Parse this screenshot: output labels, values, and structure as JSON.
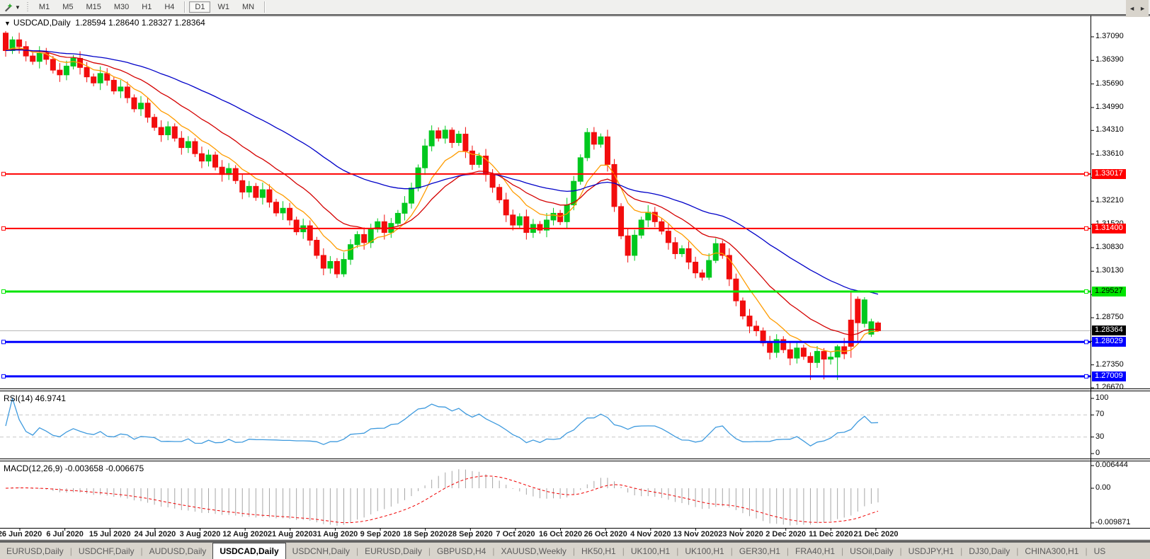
{
  "toolbar": {
    "cursor_tool_icon": "chart-cursor-icon",
    "dropdown_caret": "▼",
    "timeframes": [
      "M1",
      "M5",
      "M15",
      "M30",
      "H1",
      "H4",
      "D1",
      "W1",
      "MN"
    ],
    "active_timeframe": "D1",
    "group_break_after": "H4"
  },
  "header": {
    "collapse_icon": "▼",
    "title": "USDCAD,Daily",
    "ohlc_display": "1.28594 1.28640 1.28327 1.28364"
  },
  "colors": {
    "bull": "#00c81e",
    "bear": "#f20d0d",
    "ma_fast": "#ff9c00",
    "ma_mid": "#d40000",
    "ma_slow": "#0000c8",
    "level_red": "#ff0000",
    "level_green": "#00e400",
    "level_blue": "#0000ff",
    "current_line": "#b4b4b4",
    "current_label_bg": "#000000",
    "rsi_line": "#3e9ade",
    "rsi_grid": "#c8c8c8",
    "macd_hist": "#a6a6a6",
    "macd_signal": "#f00000"
  },
  "chart_data": {
    "type": "candlestick",
    "symbol": "USDCAD",
    "period": "Daily",
    "current_bar": {
      "open": 1.28594,
      "high": 1.2864,
      "low": 1.28327,
      "close": 1.28364
    },
    "y_axis": {
      "top": 1.3709,
      "bottom": 1.2667,
      "ticks": [
        "1.37090",
        "1.36390",
        "1.35690",
        "1.34990",
        "1.34310",
        "1.33610",
        "1.32910",
        "1.32210",
        "1.31520",
        "1.30830",
        "1.30130",
        "1.29430",
        "1.28750",
        "1.28050",
        "1.27350",
        "1.26670"
      ]
    },
    "x_labels": [
      "26 Jun 2020",
      "6 Jul 2020",
      "15 Jul 2020",
      "24 Jul 2020",
      "3 Aug 2020",
      "12 Aug 2020",
      "21 Aug 2020",
      "31 Aug 2020",
      "9 Sep 2020",
      "18 Sep 2020",
      "28 Sep 2020",
      "7 Oct 2020",
      "16 Oct 2020",
      "26 Oct 2020",
      "4 Nov 2020",
      "13 Nov 2020",
      "23 Nov 2020",
      "2 Dec 2020",
      "11 Dec 2020",
      "21 Dec 2020"
    ],
    "levels": [
      {
        "price": 1.33017,
        "label": "1.33017",
        "color": "#ff0000",
        "text": "#ffffff",
        "width": 2,
        "role": "resistance"
      },
      {
        "price": 1.314,
        "label": "1.31400",
        "color": "#ff0000",
        "text": "#ffffff",
        "width": 2,
        "role": "resistance"
      },
      {
        "price": 1.29527,
        "label": "1.29527",
        "color": "#00e400",
        "text": "#000000",
        "width": 3,
        "role": "pivot"
      },
      {
        "price": 1.28029,
        "label": "1.28029",
        "color": "#0000ff",
        "text": "#ffffff",
        "width": 3,
        "role": "support"
      },
      {
        "price": 1.27009,
        "label": "1.27009",
        "color": "#0000ff",
        "text": "#ffffff",
        "width": 3,
        "role": "support"
      }
    ],
    "current_price": {
      "value": 1.28364,
      "label": "1.28364"
    },
    "moving_averages": [
      {
        "name": "fast",
        "period": 8,
        "color": "#ff9c00"
      },
      {
        "name": "mid",
        "period": 18,
        "color": "#d40000"
      },
      {
        "name": "slow",
        "period": 45,
        "color": "#0000c8"
      }
    ],
    "indicators": [
      {
        "name": "RSI",
        "label": "RSI(14) 46.9741",
        "period": 14,
        "value": 46.9741,
        "axis_ticks": [
          "100",
          "70",
          "30",
          "0"
        ],
        "grid_levels": [
          70,
          30
        ]
      },
      {
        "name": "MACD",
        "label": "MACD(12,26,9) -0.003658 -0.006675",
        "params": [
          12,
          26,
          9
        ],
        "main_value": -0.003658,
        "signal_value": -0.006675,
        "axis_ticks": [
          "0.006444",
          "0.00",
          "-0.009871"
        ],
        "axis_top": 0.006444,
        "axis_bottom": -0.009871
      }
    ],
    "candles": [
      [
        1.372,
        1.3726,
        1.365,
        1.3668
      ],
      [
        1.3668,
        1.371,
        1.3658,
        1.37
      ],
      [
        1.37,
        1.3721,
        1.3659,
        1.368
      ],
      [
        1.368,
        1.3696,
        1.3636,
        1.3652
      ],
      [
        1.3652,
        1.3662,
        1.3626,
        1.3636
      ],
      [
        1.3636,
        1.3681,
        1.3615,
        1.366
      ],
      [
        1.366,
        1.3676,
        1.3626,
        1.3642
      ],
      [
        1.3642,
        1.3652,
        1.36,
        1.361
      ],
      [
        1.361,
        1.3631,
        1.3575,
        1.3596
      ],
      [
        1.3596,
        1.3638,
        1.358,
        1.3622
      ],
      [
        1.3622,
        1.3655,
        1.3612,
        1.3645
      ],
      [
        1.3645,
        1.3666,
        1.3597,
        1.3618
      ],
      [
        1.3618,
        1.3634,
        1.3574,
        1.359
      ],
      [
        1.359,
        1.36,
        1.3562,
        1.3572
      ],
      [
        1.3572,
        1.3621,
        1.3551,
        1.36
      ],
      [
        1.36,
        1.3616,
        1.3564,
        1.358
      ],
      [
        1.358,
        1.359,
        1.3538,
        1.3548
      ],
      [
        1.3548,
        1.3581,
        1.3527,
        1.356
      ],
      [
        1.356,
        1.3576,
        1.3512,
        1.3528
      ],
      [
        1.3528,
        1.3538,
        1.3485,
        1.3495
      ],
      [
        1.3495,
        1.3533,
        1.3474,
        1.3512
      ],
      [
        1.3512,
        1.3528,
        1.3454,
        1.347
      ],
      [
        1.347,
        1.348,
        1.343,
        1.344
      ],
      [
        1.344,
        1.3461,
        1.3397,
        1.3418
      ],
      [
        1.3418,
        1.3458,
        1.3402,
        1.3442
      ],
      [
        1.3442,
        1.3452,
        1.3398,
        1.3408
      ],
      [
        1.3408,
        1.3429,
        1.3359,
        1.338
      ],
      [
        1.338,
        1.3414,
        1.3364,
        1.3398
      ],
      [
        1.3398,
        1.3408,
        1.3352,
        1.3362
      ],
      [
        1.3362,
        1.3383,
        1.3319,
        1.334
      ],
      [
        1.334,
        1.3374,
        1.3324,
        1.3358
      ],
      [
        1.3358,
        1.3368,
        1.3312,
        1.3322
      ],
      [
        1.3322,
        1.3343,
        1.3279,
        1.33
      ],
      [
        1.33,
        1.3334,
        1.3284,
        1.3318
      ],
      [
        1.3318,
        1.3328,
        1.3272,
        1.3282
      ],
      [
        1.3282,
        1.3303,
        1.3227,
        1.3248
      ],
      [
        1.3248,
        1.3281,
        1.3232,
        1.3265
      ],
      [
        1.3265,
        1.3275,
        1.3222,
        1.3232
      ],
      [
        1.3232,
        1.3276,
        1.3211,
        1.3255
      ],
      [
        1.3255,
        1.3271,
        1.3202,
        1.3218
      ],
      [
        1.3218,
        1.3228,
        1.3176,
        1.3186
      ],
      [
        1.3186,
        1.3221,
        1.3165,
        1.32
      ],
      [
        1.32,
        1.3216,
        1.3149,
        1.3165
      ],
      [
        1.3165,
        1.3175,
        1.312,
        1.313
      ],
      [
        1.313,
        1.3169,
        1.3109,
        1.3148
      ],
      [
        1.3148,
        1.3164,
        1.3089,
        1.3105
      ],
      [
        1.3105,
        1.3115,
        1.305,
        1.306
      ],
      [
        1.306,
        1.3081,
        1.3001,
        1.3022
      ],
      [
        1.3022,
        1.3058,
        1.3006,
        1.3042
      ],
      [
        1.3042,
        1.3052,
        1.2993,
        1.3005
      ],
      [
        1.3005,
        1.3069,
        1.2996,
        1.3048
      ],
      [
        1.3048,
        1.3108,
        1.3032,
        1.3092
      ],
      [
        1.3092,
        1.3132,
        1.3082,
        1.3122
      ],
      [
        1.3122,
        1.3143,
        1.3077,
        1.3098
      ],
      [
        1.3098,
        1.3154,
        1.3082,
        1.3138
      ],
      [
        1.3138,
        1.317,
        1.3128,
        1.316
      ],
      [
        1.316,
        1.3181,
        1.3107,
        1.3128
      ],
      [
        1.3128,
        1.3171,
        1.3112,
        1.3155
      ],
      [
        1.3155,
        1.3195,
        1.3145,
        1.3185
      ],
      [
        1.3185,
        1.3236,
        1.3164,
        1.3215
      ],
      [
        1.3215,
        1.3276,
        1.3199,
        1.326
      ],
      [
        1.326,
        1.333,
        1.325,
        1.332
      ],
      [
        1.332,
        1.3406,
        1.3299,
        1.3385
      ],
      [
        1.3385,
        1.3446,
        1.3369,
        1.343
      ],
      [
        1.343,
        1.344,
        1.3398,
        1.3408
      ],
      [
        1.3408,
        1.3445,
        1.3392,
        1.3432
      ],
      [
        1.3432,
        1.344,
        1.3379,
        1.3395
      ],
      [
        1.3395,
        1.343,
        1.3385,
        1.342
      ],
      [
        1.342,
        1.3441,
        1.3349,
        1.337
      ],
      [
        1.337,
        1.3386,
        1.3314,
        1.333
      ],
      [
        1.333,
        1.3365,
        1.332,
        1.3355
      ],
      [
        1.3355,
        1.3376,
        1.3279,
        1.33
      ],
      [
        1.33,
        1.3316,
        1.3246,
        1.3262
      ],
      [
        1.3262,
        1.3272,
        1.3215,
        1.3225
      ],
      [
        1.3225,
        1.3246,
        1.3159,
        1.318
      ],
      [
        1.318,
        1.3196,
        1.3134,
        1.315
      ],
      [
        1.315,
        1.3185,
        1.314,
        1.3175
      ],
      [
        1.3175,
        1.3196,
        1.3107,
        1.3128
      ],
      [
        1.3128,
        1.3168,
        1.3112,
        1.3152
      ],
      [
        1.3152,
        1.3162,
        1.3125,
        1.3135
      ],
      [
        1.3135,
        1.3186,
        1.3114,
        1.3165
      ],
      [
        1.3165,
        1.3201,
        1.3149,
        1.3185
      ],
      [
        1.3185,
        1.3195,
        1.315,
        1.316
      ],
      [
        1.316,
        1.3231,
        1.3139,
        1.321
      ],
      [
        1.321,
        1.3296,
        1.3194,
        1.328
      ],
      [
        1.328,
        1.336,
        1.327,
        1.335
      ],
      [
        1.335,
        1.3438,
        1.334,
        1.3425
      ],
      [
        1.3425,
        1.3441,
        1.3374,
        1.339
      ],
      [
        1.339,
        1.3422,
        1.338,
        1.3412
      ],
      [
        1.3412,
        1.3433,
        1.3309,
        1.333
      ],
      [
        1.333,
        1.3346,
        1.3189,
        1.3205
      ],
      [
        1.3205,
        1.3215,
        1.3108,
        1.3118
      ],
      [
        1.3118,
        1.3139,
        1.3039,
        1.306
      ],
      [
        1.306,
        1.3136,
        1.3044,
        1.312
      ],
      [
        1.312,
        1.3175,
        1.311,
        1.3165
      ],
      [
        1.3165,
        1.3209,
        1.3144,
        1.3188
      ],
      [
        1.3188,
        1.3204,
        1.3144,
        1.316
      ],
      [
        1.316,
        1.317,
        1.3122,
        1.3132
      ],
      [
        1.3132,
        1.3153,
        1.3077,
        1.3098
      ],
      [
        1.3098,
        1.3114,
        1.3049,
        1.3065
      ],
      [
        1.3065,
        1.309,
        1.3055,
        1.308
      ],
      [
        1.308,
        1.3101,
        1.3019,
        1.304
      ],
      [
        1.304,
        1.3056,
        1.2992,
        1.3008
      ],
      [
        1.3008,
        1.3018,
        1.2985,
        1.2995
      ],
      [
        1.2995,
        1.3066,
        1.2987,
        1.3045
      ],
      [
        1.3045,
        1.3111,
        1.3037,
        1.3095
      ],
      [
        1.3095,
        1.3105,
        1.305,
        1.306
      ],
      [
        1.306,
        1.3081,
        1.2969,
        1.299
      ],
      [
        1.299,
        1.3006,
        1.2909,
        1.2925
      ],
      [
        1.2925,
        1.2935,
        1.287,
        1.288
      ],
      [
        1.288,
        1.2901,
        1.2829,
        1.285
      ],
      [
        1.285,
        1.2866,
        1.282,
        1.2836
      ],
      [
        1.2836,
        1.2846,
        1.279,
        1.28
      ],
      [
        1.28,
        1.2821,
        1.2751,
        1.2772
      ],
      [
        1.2772,
        1.2826,
        1.2756,
        1.281
      ],
      [
        1.281,
        1.282,
        1.277,
        1.278
      ],
      [
        1.278,
        1.2801,
        1.2734,
        1.2755
      ],
      [
        1.2755,
        1.2801,
        1.2739,
        1.2785
      ],
      [
        1.2785,
        1.2795,
        1.275,
        1.276
      ],
      [
        1.276,
        1.2772,
        1.269,
        1.2742
      ],
      [
        1.2742,
        1.2791,
        1.2726,
        1.2775
      ],
      [
        1.2775,
        1.2785,
        1.2692,
        1.2752
      ],
      [
        1.2752,
        1.2774,
        1.2736,
        1.2758
      ],
      [
        1.2758,
        1.2795,
        1.269,
        1.2789
      ],
      [
        1.2789,
        1.2815,
        1.2752,
        1.2768
      ],
      [
        1.2868,
        1.2952,
        1.2756,
        1.279
      ],
      [
        1.293,
        1.2938,
        1.28,
        1.286
      ],
      [
        1.2858,
        1.2936,
        1.2846,
        1.2928
      ],
      [
        1.2826,
        1.2872,
        1.2818,
        1.2863
      ],
      [
        1.28594,
        1.2864,
        1.28327,
        1.28364
      ]
    ]
  },
  "tabs": {
    "items": [
      {
        "label": "EURUSD,Daily"
      },
      {
        "label": "USDCHF,Daily"
      },
      {
        "label": "AUDUSD,Daily"
      },
      {
        "label": "USDCAD,Daily",
        "active": true
      },
      {
        "label": "USDCNH,Daily"
      },
      {
        "label": "EURUSD,Daily"
      },
      {
        "label": "GBPUSD,H4"
      },
      {
        "label": "XAUUSD,Weekly"
      },
      {
        "label": "HK50,H1"
      },
      {
        "label": "UK100,H1"
      },
      {
        "label": "UK100,H1"
      },
      {
        "label": "GER30,H1"
      },
      {
        "label": "FRA40,H1"
      },
      {
        "label": "USOil,Daily"
      },
      {
        "label": "USDJPY,H1"
      },
      {
        "label": "DJ30,Daily"
      },
      {
        "label": "CHINA300,H1"
      },
      {
        "label": "US",
        "truncated": true
      }
    ],
    "scroll_left": "◄",
    "scroll_right": "►"
  }
}
